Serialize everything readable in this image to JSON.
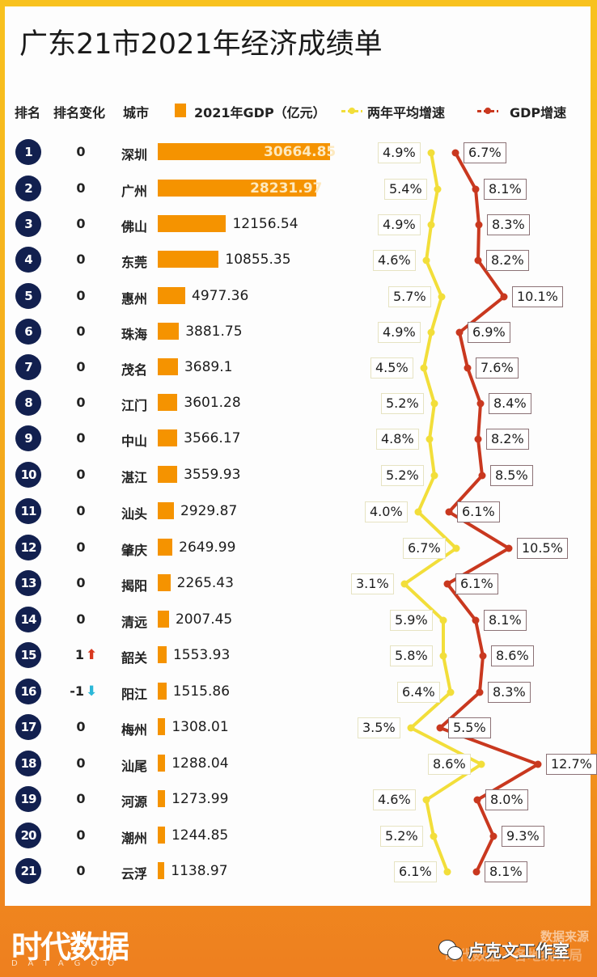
{
  "title": "广东21市2021年经济成绩单",
  "legend": {
    "rank_header": "排名",
    "rank_change_header": "排名变化",
    "city_header": "城市",
    "gdp_label": "2021年GDP（亿元）",
    "avg_growth_label": "两年平均增速",
    "gdp_growth_label": "GDP增速"
  },
  "colors": {
    "gdp_bar": "#f59300",
    "avg_growth_line": "#f2de3a",
    "gdp_growth_line": "#c9381f",
    "rank_badge": "#12204f",
    "rank_up": "#d9391f",
    "rank_down": "#2cb8d8",
    "footer": "#ea6f1f"
  },
  "rows": [
    {
      "rank": "1",
      "change": "0",
      "city": "深圳",
      "gdp": "30664.85",
      "avg": "4.9%",
      "growth": "6.7%"
    },
    {
      "rank": "2",
      "change": "0",
      "city": "广州",
      "gdp": "28231.97",
      "avg": "5.4%",
      "growth": "8.1%"
    },
    {
      "rank": "3",
      "change": "0",
      "city": "佛山",
      "gdp": "12156.54",
      "avg": "4.9%",
      "growth": "8.3%"
    },
    {
      "rank": "4",
      "change": "0",
      "city": "东莞",
      "gdp": "10855.35",
      "avg": "4.6%",
      "growth": "8.2%"
    },
    {
      "rank": "5",
      "change": "0",
      "city": "惠州",
      "gdp": "4977.36",
      "avg": "5.7%",
      "growth": "10.1%"
    },
    {
      "rank": "6",
      "change": "0",
      "city": "珠海",
      "gdp": "3881.75",
      "avg": "4.9%",
      "growth": "6.9%"
    },
    {
      "rank": "7",
      "change": "0",
      "city": "茂名",
      "gdp": "3689.1",
      "avg": "4.5%",
      "growth": "7.6%"
    },
    {
      "rank": "8",
      "change": "0",
      "city": "江门",
      "gdp": "3601.28",
      "avg": "5.2%",
      "growth": "8.4%"
    },
    {
      "rank": "9",
      "change": "0",
      "city": "中山",
      "gdp": "3566.17",
      "avg": "4.8%",
      "growth": "8.2%"
    },
    {
      "rank": "10",
      "change": "0",
      "city": "湛江",
      "gdp": "3559.93",
      "avg": "5.2%",
      "growth": "8.5%"
    },
    {
      "rank": "11",
      "change": "0",
      "city": "汕头",
      "gdp": "2929.87",
      "avg": "4.0%",
      "growth": "6.1%"
    },
    {
      "rank": "12",
      "change": "0",
      "city": "肇庆",
      "gdp": "2649.99",
      "avg": "6.7%",
      "growth": "10.5%"
    },
    {
      "rank": "13",
      "change": "0",
      "city": "揭阳",
      "gdp": "2265.43",
      "avg": "3.1%",
      "growth": "6.1%"
    },
    {
      "rank": "14",
      "change": "0",
      "city": "清远",
      "gdp": "2007.45",
      "avg": "5.9%",
      "growth": "8.1%"
    },
    {
      "rank": "15",
      "change": "1",
      "change_dir": "up",
      "city": "韶关",
      "gdp": "1553.93",
      "avg": "5.8%",
      "growth": "8.6%"
    },
    {
      "rank": "16",
      "change": "-1",
      "change_dir": "down",
      "city": "阳江",
      "gdp": "1515.86",
      "avg": "6.4%",
      "growth": "8.3%"
    },
    {
      "rank": "17",
      "change": "0",
      "city": "梅州",
      "gdp": "1308.01",
      "avg": "3.5%",
      "growth": "5.5%"
    },
    {
      "rank": "18",
      "change": "0",
      "city": "汕尾",
      "gdp": "1288.04",
      "avg": "8.6%",
      "growth": "12.7%"
    },
    {
      "rank": "19",
      "change": "0",
      "city": "河源",
      "gdp": "1273.99",
      "avg": "4.6%",
      "growth": "8.0%"
    },
    {
      "rank": "20",
      "change": "0",
      "city": "潮州",
      "gdp": "1244.85",
      "avg": "5.2%",
      "growth": "9.3%"
    },
    {
      "rank": "21",
      "change": "0",
      "city": "云浮",
      "gdp": "1138.97",
      "avg": "6.1%",
      "growth": "8.1%"
    }
  ],
  "icons": {
    "rank_up": "arrow-up-icon",
    "rank_down": "arrow-down-icon",
    "wechat": "wechat-icon"
  },
  "footer": {
    "brand_cn": "时代数据",
    "brand_en": "DATAGOO",
    "source_label": "数据来源",
    "source_value": "时代数据・各地统计局",
    "watermark": "卢克文工作室"
  },
  "chart_data": {
    "type": "bar",
    "title": "广东21市2021年经济成绩单",
    "orientation": "horizontal",
    "categories": [
      "深圳",
      "广州",
      "佛山",
      "东莞",
      "惠州",
      "珠海",
      "茂名",
      "江门",
      "中山",
      "湛江",
      "汕头",
      "肇庆",
      "揭阳",
      "清远",
      "韶关",
      "阳江",
      "梅州",
      "汕尾",
      "河源",
      "潮州",
      "云浮"
    ],
    "series": [
      {
        "name": "2021年GDP（亿元）",
        "type": "bar",
        "values": [
          30664.85,
          28231.97,
          12156.54,
          10855.35,
          4977.36,
          3881.75,
          3689.1,
          3601.28,
          3566.17,
          3559.93,
          2929.87,
          2649.99,
          2265.43,
          2007.45,
          1553.93,
          1515.86,
          1308.01,
          1288.04,
          1273.99,
          1244.85,
          1138.97
        ]
      },
      {
        "name": "两年平均增速",
        "type": "line",
        "unit": "%",
        "values": [
          4.9,
          5.4,
          4.9,
          4.6,
          5.7,
          4.9,
          4.5,
          5.2,
          4.8,
          5.2,
          4.0,
          6.7,
          3.1,
          5.9,
          5.8,
          6.4,
          3.5,
          8.6,
          4.6,
          5.2,
          6.1
        ]
      },
      {
        "name": "GDP增速",
        "type": "line",
        "unit": "%",
        "values": [
          6.7,
          8.1,
          8.3,
          8.2,
          10.1,
          6.9,
          7.6,
          8.4,
          8.2,
          8.5,
          6.1,
          10.5,
          6.1,
          8.1,
          8.6,
          8.3,
          5.5,
          12.7,
          8.0,
          9.3,
          8.1
        ]
      }
    ],
    "rank": [
      1,
      2,
      3,
      4,
      5,
      6,
      7,
      8,
      9,
      10,
      11,
      12,
      13,
      14,
      15,
      16,
      17,
      18,
      19,
      20,
      21
    ],
    "rank_change": [
      0,
      0,
      0,
      0,
      0,
      0,
      0,
      0,
      0,
      0,
      0,
      0,
      0,
      0,
      1,
      -1,
      0,
      0,
      0,
      0,
      0
    ],
    "xlabel": "",
    "ylabel": "",
    "legend_position": "top"
  }
}
